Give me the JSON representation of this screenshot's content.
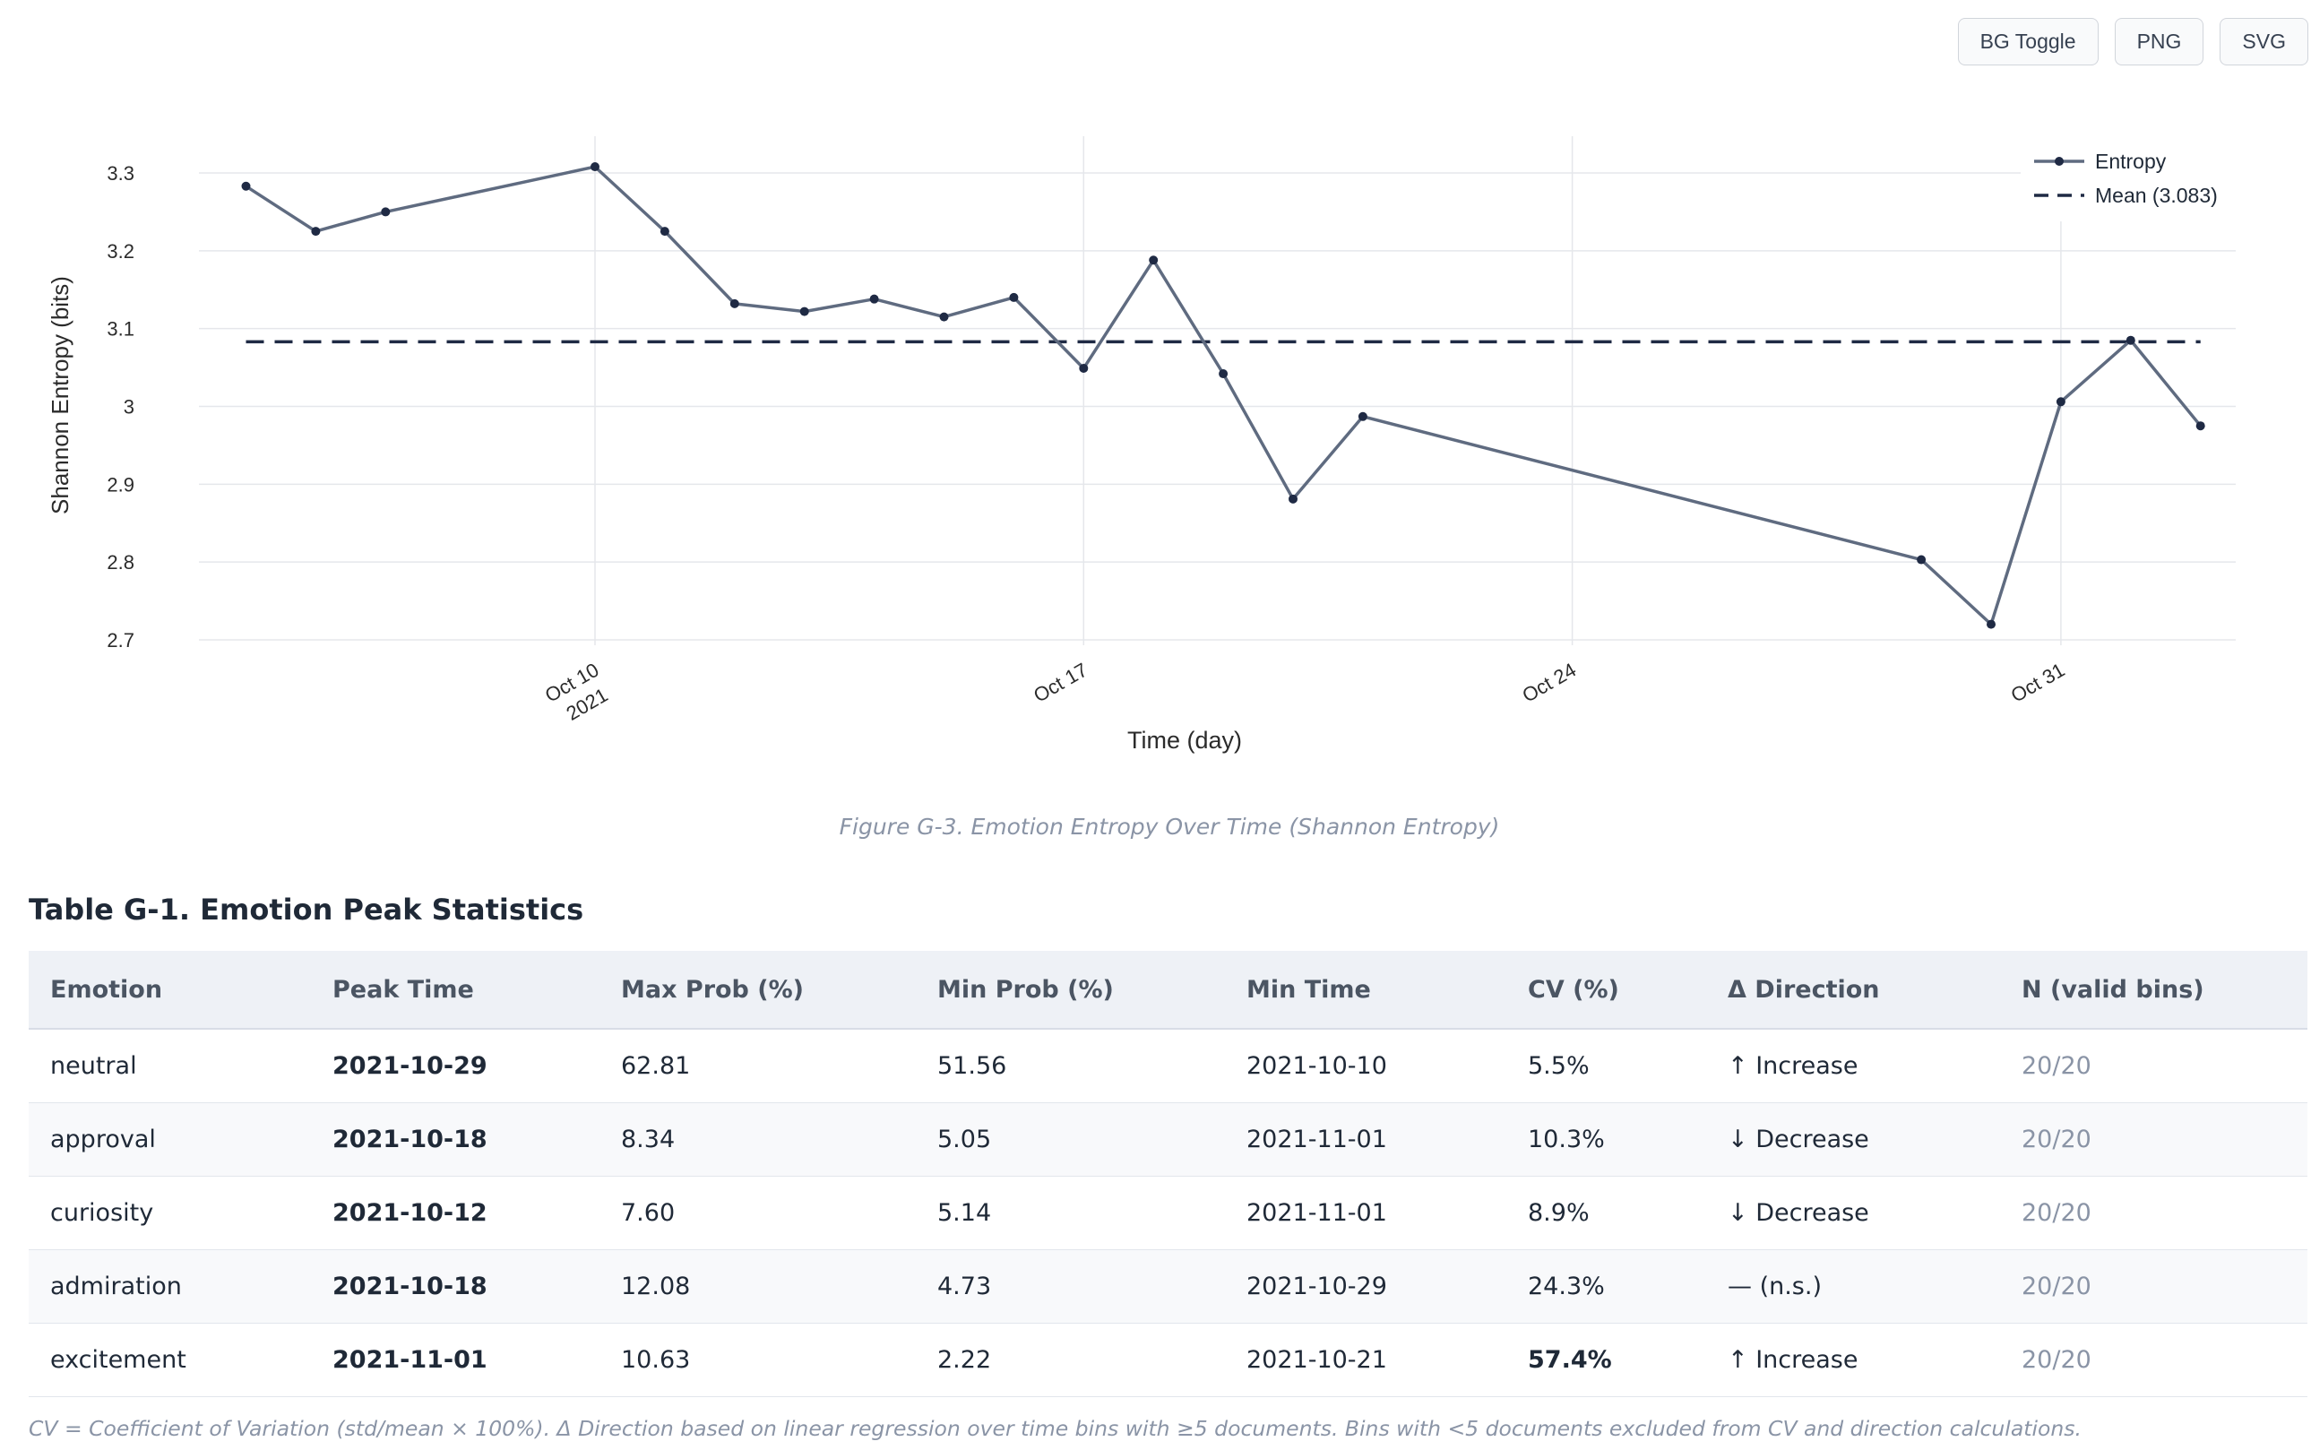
{
  "toolbar": {
    "bg_toggle_label": "BG Toggle",
    "png_label": "PNG",
    "svg_label": "SVG"
  },
  "chart_data": {
    "type": "line",
    "ylabel": "Shannon Entropy (bits)",
    "xlabel": "Time (day)",
    "ylim": [
      2.68,
      3.35
    ],
    "yticks": [
      2.7,
      2.8,
      2.9,
      3.0,
      3.1,
      3.2,
      3.3
    ],
    "ytick_labels": [
      "2.7",
      "2.8",
      "2.9",
      "3",
      "3.1",
      "3.2",
      "3.3"
    ],
    "xlim": [
      "2021-10-04",
      "2021-11-02"
    ],
    "xticks": [
      {
        "date": "2021-10-10",
        "label": "Oct 10",
        "sublabel": "2021"
      },
      {
        "date": "2021-10-17",
        "label": "Oct 17",
        "sublabel": ""
      },
      {
        "date": "2021-10-24",
        "label": "Oct 24",
        "sublabel": ""
      },
      {
        "date": "2021-10-31",
        "label": "Oct 31",
        "sublabel": ""
      }
    ],
    "grid": true,
    "legend_position": "top-right",
    "series": [
      {
        "name": "Entropy",
        "color": "#5f6b80",
        "points": [
          {
            "x": "2021-10-05",
            "y": 3.283
          },
          {
            "x": "2021-10-06",
            "y": 3.225
          },
          {
            "x": "2021-10-07",
            "y": 3.25
          },
          {
            "x": "2021-10-10",
            "y": 3.308
          },
          {
            "x": "2021-10-11",
            "y": 3.225
          },
          {
            "x": "2021-10-12",
            "y": 3.132
          },
          {
            "x": "2021-10-13",
            "y": 3.122
          },
          {
            "x": "2021-10-14",
            "y": 3.138
          },
          {
            "x": "2021-10-15",
            "y": 3.115
          },
          {
            "x": "2021-10-16",
            "y": 3.14
          },
          {
            "x": "2021-10-17",
            "y": 3.049
          },
          {
            "x": "2021-10-18",
            "y": 3.188
          },
          {
            "x": "2021-10-19",
            "y": 3.042
          },
          {
            "x": "2021-10-20",
            "y": 2.881
          },
          {
            "x": "2021-10-21",
            "y": 2.987
          },
          {
            "x": "2021-10-29",
            "y": 2.803
          },
          {
            "x": "2021-10-30",
            "y": 2.72
          },
          {
            "x": "2021-10-31",
            "y": 3.006
          },
          {
            "x": "2021-11-01",
            "y": 3.085
          },
          {
            "x": "2021-11-02",
            "y": 2.975
          }
        ]
      },
      {
        "name": "Mean (3.083)",
        "color": "#1f2a44",
        "dash": true,
        "value": 3.083,
        "x_range": [
          "2021-10-05",
          "2021-11-02"
        ]
      }
    ]
  },
  "caption": "Figure G-3. Emotion Entropy Over Time (Shannon Entropy)",
  "table": {
    "title": "Table G-1. Emotion Peak Statistics",
    "headers": [
      "Emotion",
      "Peak Time",
      "Max Prob (%)",
      "Min Prob (%)",
      "Min Time",
      "CV (%)",
      "Δ Direction",
      "N (valid bins)"
    ],
    "rows": [
      {
        "emotion": "neutral",
        "peak_time": "2021-10-29",
        "max_prob": "62.81",
        "min_prob": "51.56",
        "min_time": "2021-10-10",
        "cv": "5.5%",
        "cv_high": false,
        "direction": "↑ Increase",
        "direction_kind": "up",
        "n": "20/20"
      },
      {
        "emotion": "approval",
        "peak_time": "2021-10-18",
        "max_prob": "8.34",
        "min_prob": "5.05",
        "min_time": "2021-11-01",
        "cv": "10.3%",
        "cv_high": false,
        "direction": "↓ Decrease",
        "direction_kind": "down",
        "n": "20/20"
      },
      {
        "emotion": "curiosity",
        "peak_time": "2021-10-12",
        "max_prob": "7.60",
        "min_prob": "5.14",
        "min_time": "2021-11-01",
        "cv": "8.9%",
        "cv_high": false,
        "direction": "↓ Decrease",
        "direction_kind": "down",
        "n": "20/20"
      },
      {
        "emotion": "admiration",
        "peak_time": "2021-10-18",
        "max_prob": "12.08",
        "min_prob": "4.73",
        "min_time": "2021-10-29",
        "cv": "24.3%",
        "cv_high": false,
        "direction": "— (n.s.)",
        "direction_kind": "ns",
        "n": "20/20"
      },
      {
        "emotion": "excitement",
        "peak_time": "2021-11-01",
        "max_prob": "10.63",
        "min_prob": "2.22",
        "min_time": "2021-10-21",
        "cv": "57.4%",
        "cv_high": true,
        "direction": "↑ Increase",
        "direction_kind": "up",
        "n": "20/20"
      }
    ]
  },
  "footnote": "CV = Coefficient of Variation (std/mean × 100%). Δ Direction based on linear regression over time bins with ≥5 documents. Bins with <5 documents excluded from CV and direction calculations."
}
